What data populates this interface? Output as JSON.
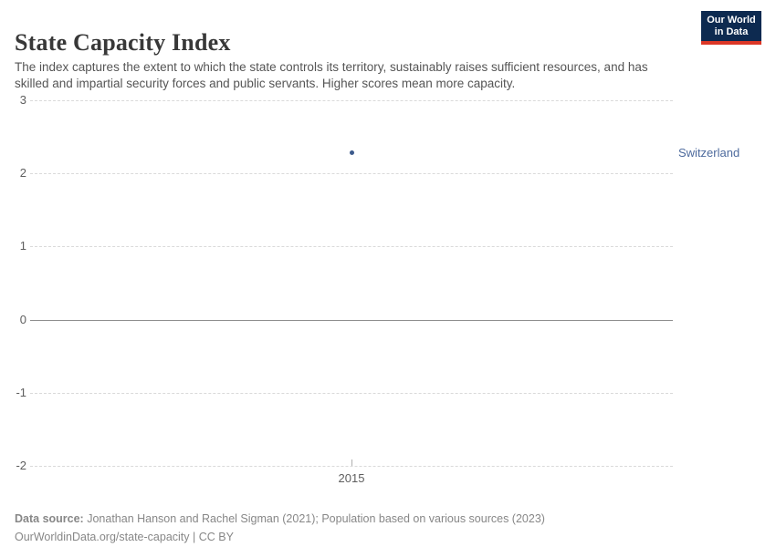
{
  "header": {
    "title": "State Capacity Index",
    "subtitle": "The index captures the extent to which the state controls its territory, sustainably raises sufficient resources, and has skilled and impartial security forces and public servants. Higher scores mean more capacity.",
    "logo": {
      "line1": "Our World",
      "line2": "in Data"
    }
  },
  "chart_data": {
    "type": "scatter",
    "title": "State Capacity Index",
    "x": [
      2015
    ],
    "series": [
      {
        "name": "Switzerland",
        "values": [
          2.29
        ]
      }
    ],
    "ylim": [
      -2,
      3
    ],
    "yticks": [
      3,
      2,
      1,
      0,
      -1,
      -2
    ],
    "ytick_labels": [
      "3",
      "2",
      "1",
      "0",
      "-1",
      "-2"
    ],
    "xtick_labels": [
      "2015"
    ],
    "grid": "horizontal-dashed",
    "zero_line": "solid",
    "legend_position": "right-of-point",
    "point_color": "#3c5a8c",
    "entity_label_color": "#4d6a9d"
  },
  "annotations": {
    "entity_label": "Switzerland"
  },
  "footer": {
    "source_label": "Data source:",
    "source_text": "Jonathan Hanson and Rachel Sigman (2021); Population based on various sources (2023)",
    "license": "OurWorldinData.org/state-capacity | CC BY"
  },
  "colors": {
    "point_blue": "#3c5a8c",
    "label_blue": "#4d6a9d",
    "logo_navy": "#0d2a50",
    "logo_red": "#dc3726",
    "gridline_gray": "#dadada",
    "zero_line_gray": "#8e8e8e",
    "text_gray": "#5e5e5e"
  }
}
